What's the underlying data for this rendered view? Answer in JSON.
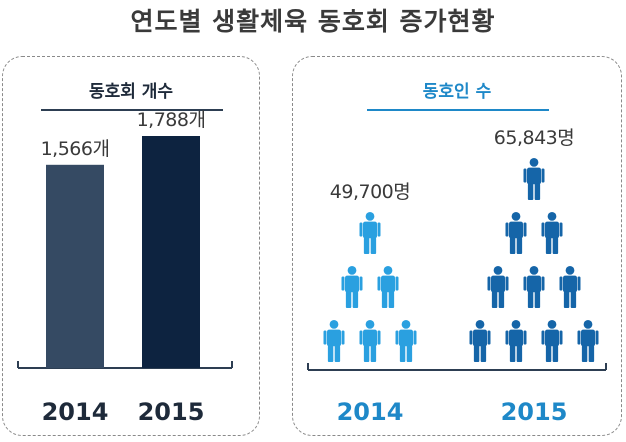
{
  "title": "연도별 생활체육 동호회 증가현황",
  "chart_data": [
    {
      "type": "bar",
      "title": "동호회 개수",
      "categories": [
        "2014",
        "2015"
      ],
      "values": [
        1566,
        1788
      ],
      "value_labels": [
        "1,566개",
        "1,788개"
      ],
      "colors": [
        "#354a63",
        "#0d2340"
      ]
    },
    {
      "type": "pictogram",
      "title": "동호인 수",
      "categories": [
        "2014",
        "2015"
      ],
      "values": [
        49700,
        65843
      ],
      "value_labels": [
        "49,700명",
        "65,843명"
      ],
      "icon": "person-icon",
      "icon_rows": [
        [
          1,
          2,
          3
        ],
        [
          1,
          2,
          3,
          4
        ]
      ],
      "colors": [
        "#2aa0e0",
        "#1565a8"
      ],
      "category_label_color": "#1e88c8"
    }
  ]
}
